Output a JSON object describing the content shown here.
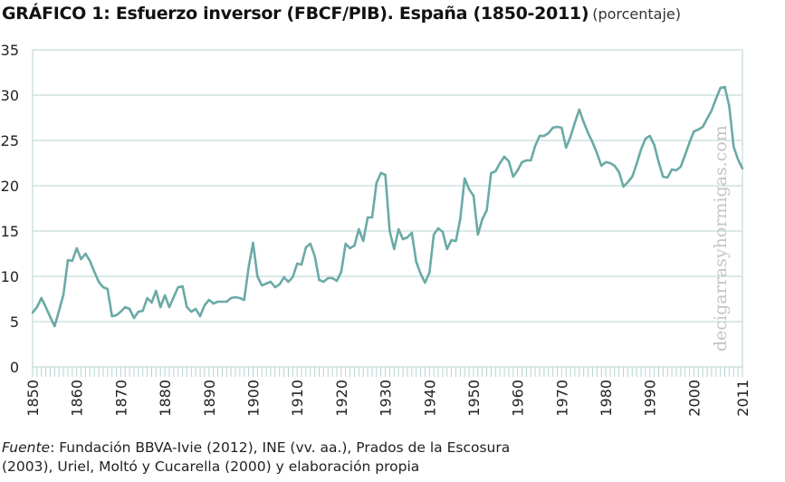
{
  "chart_data": {
    "type": "line",
    "title": "GRÁFICO 1: Esfuerzo inversor (FBCF/PIB). España (1850-2011)",
    "unit_label": "(porcentaje)",
    "xlabel": "",
    "ylabel": "",
    "xlim": [
      1850,
      2011
    ],
    "ylim": [
      0,
      35
    ],
    "yticks": [
      "0",
      "5",
      "10",
      "15",
      "20",
      "25",
      "30",
      "35"
    ],
    "xtick_labels": [
      "1850",
      "1860",
      "1870",
      "1880",
      "1890",
      "1900",
      "1910",
      "1920",
      "1930",
      "1940",
      "1950",
      "1960",
      "1970",
      "1980",
      "1990",
      "2000",
      "2011"
    ],
    "grid": true,
    "color": "#6aaaa6",
    "series": [
      {
        "name": "FBCF/PIB",
        "start_year": 1850,
        "values": [
          6.0,
          6.6,
          7.6,
          6.6,
          5.5,
          4.5,
          6.2,
          8.0,
          11.8,
          11.7,
          13.1,
          11.9,
          12.5,
          11.7,
          10.5,
          9.4,
          8.8,
          8.6,
          5.6,
          5.7,
          6.1,
          6.6,
          6.4,
          5.4,
          6.1,
          6.2,
          7.6,
          7.1,
          8.4,
          6.6,
          7.9,
          6.6,
          7.7,
          8.8,
          8.9,
          6.6,
          6.1,
          6.4,
          5.6,
          6.8,
          7.4,
          7.0,
          7.2,
          7.2,
          7.2,
          7.6,
          7.7,
          7.6,
          7.4,
          11.0,
          13.7,
          10.0,
          9.0,
          9.2,
          9.4,
          8.8,
          9.1,
          9.9,
          9.4,
          9.9,
          11.4,
          11.3,
          13.2,
          13.6,
          12.2,
          9.6,
          9.4,
          9.8,
          9.8,
          9.5,
          10.5,
          13.6,
          13.1,
          13.4,
          15.2,
          13.9,
          16.5,
          16.5,
          20.3,
          21.4,
          21.2,
          15.0,
          13.0,
          15.2,
          14.1,
          14.3,
          14.8,
          11.6,
          10.3,
          9.3,
          10.4,
          14.6,
          15.3,
          14.9,
          13.0,
          14.0,
          13.9,
          16.3,
          20.8,
          19.6,
          18.9,
          14.6,
          16.3,
          17.3,
          21.4,
          21.6,
          22.5,
          23.2,
          22.7,
          21.0,
          21.7,
          22.6,
          22.8,
          22.8,
          24.4,
          25.5,
          25.5,
          25.8,
          26.4,
          26.5,
          26.4,
          24.2,
          25.4,
          27.0,
          28.4,
          27.0,
          25.8,
          24.8,
          23.6,
          22.2,
          22.6,
          22.5,
          22.2,
          21.5,
          19.9,
          20.4,
          21.0,
          22.4,
          24.0,
          25.2,
          25.5,
          24.5,
          22.6,
          21.0,
          20.9,
          21.8,
          21.7,
          22.1,
          23.4,
          24.8,
          26.0,
          26.2,
          26.5,
          27.4,
          28.3,
          29.6,
          30.8,
          30.9,
          28.8,
          24.3,
          22.9,
          21.9
        ]
      }
    ]
  },
  "watermark": "decigarrasyhormigas.com",
  "source": {
    "label": "Fuente",
    "line1": ": Fundación BBVA-Ivie (2012), INE (vv. aa.), Prados de la Escosura",
    "line2": "(2003), Uriel, Moltó y Cucarella (2000) y elaboración propia"
  }
}
